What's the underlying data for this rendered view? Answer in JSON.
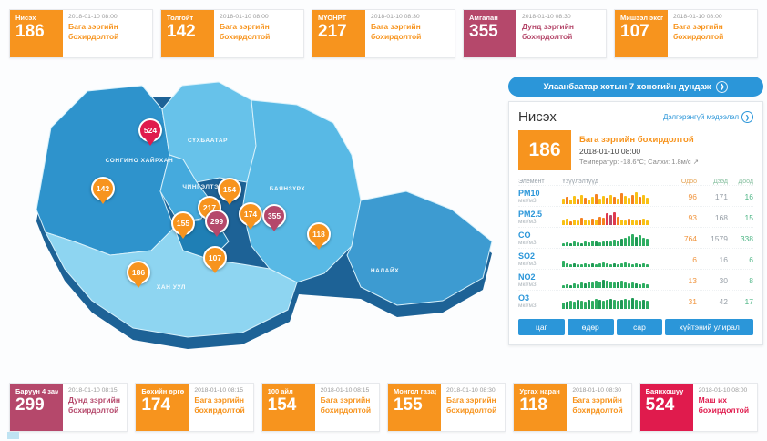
{
  "top_cards": [
    {
      "name": "Нисэх",
      "value": "186",
      "date": "2018-01-10 08:00",
      "status": "Бага зэргийн бохирдолтой"
    },
    {
      "name": "Толгойт",
      "value": "142",
      "date": "2018-01-10 08:00",
      "status": "Бага зэргийн бохирдолтой"
    },
    {
      "name": "МҮОНРТ",
      "value": "217",
      "date": "2018-01-10 08:30",
      "status": "Бага зэргийн бохирдолтой"
    },
    {
      "name": "Амгалан",
      "value": "355",
      "date": "2018-01-10 08:30",
      "status": "Дунд зэргийн бохирдолтой"
    },
    {
      "name": "Мишээл экспо",
      "value": "107",
      "date": "2018-01-10 08:00",
      "status": "Бага зэргийн бохирдолтой"
    }
  ],
  "bottom_cards": [
    {
      "name": "Баруун 4 зам",
      "value": "299",
      "date": "2018-01-10 08:15",
      "status": "Дунд зэргийн бохирдолтой"
    },
    {
      "name": "Бөхийн өргөө",
      "value": "174",
      "date": "2018-01-10 08:15",
      "status": "Бага зэргийн бохирдолтой"
    },
    {
      "name": "100 айл",
      "value": "154",
      "date": "2018-01-10 08:15",
      "status": "Бага зэргийн бохирдолтой"
    },
    {
      "name": "Монгол газар",
      "value": "155",
      "date": "2018-01-10 08:30",
      "status": "Бага зэргийн бохирдолтой"
    },
    {
      "name": "Ургах наран",
      "value": "118",
      "date": "2018-01-10 08:30",
      "status": "Бага зэргийн бохирдолтой"
    },
    {
      "name": "Баянхошуу",
      "value": "524",
      "date": "2018-01-10 08:00",
      "status": "Маш их бохирдолтой"
    }
  ],
  "map": {
    "districts": {
      "songino_khairkhan": "СОНГИНО ХАЙРХАН",
      "sukhbaatar": "СҮХБААТАР",
      "chingeltei": "ЧИНГЭЛТЭЙ",
      "bayanzurkh": "БАЯНЗҮРХ",
      "khan_uul": "ХАН УУЛ",
      "nalaikh": "НАЛАЙХ"
    },
    "markers": [
      {
        "value": "524",
        "level": "vhigh"
      },
      {
        "value": "142",
        "level": "low"
      },
      {
        "value": "154",
        "level": "low"
      },
      {
        "value": "217",
        "level": "low"
      },
      {
        "value": "299",
        "level": "mid"
      },
      {
        "value": "155",
        "level": "low"
      },
      {
        "value": "174",
        "level": "low"
      },
      {
        "value": "355",
        "level": "mid"
      },
      {
        "value": "118",
        "level": "low"
      },
      {
        "value": "107",
        "level": "low"
      },
      {
        "value": "186",
        "level": "low"
      }
    ]
  },
  "panel": {
    "header": "Улаанбаатар хотын 7 хоногийн дундаж",
    "station": "Нисэх",
    "details_link": "Дэлгэрэнгүй мэдээлэл",
    "value": "186",
    "status": "Бага зэргийн бохирдолтой",
    "date": "2018-01-10 08:00",
    "weather": "Температур: -18.6°C; Салхи: 1.8м/с ↗",
    "col_element": "Элемент",
    "col_indicators": "Үзүүлэлтүүд",
    "col_now": "Одоо",
    "col_max": "Дээд",
    "col_min": "Доод",
    "elements": [
      {
        "name": "PM10",
        "unit": "мкг/м3",
        "now": "96",
        "max": "171",
        "min": "16",
        "bars": [
          6,
          8,
          5,
          9,
          6,
          10,
          7,
          5,
          8,
          11,
          6,
          9,
          7,
          10,
          8,
          6,
          12,
          9,
          7,
          10,
          13,
          8,
          10,
          7
        ],
        "bar_colors": [
          "y",
          "o",
          "y",
          "y",
          "o",
          "y",
          "o",
          "y",
          "y",
          "o",
          "y",
          "y",
          "o",
          "y",
          "o",
          "y",
          "o",
          "y",
          "y",
          "o",
          "y",
          "o",
          "y",
          "y"
        ]
      },
      {
        "name": "PM2.5",
        "unit": "мкг/м3",
        "now": "93",
        "max": "168",
        "min": "15",
        "bars": [
          5,
          7,
          4,
          6,
          5,
          8,
          6,
          5,
          7,
          6,
          9,
          8,
          13,
          11,
          14,
          9,
          6,
          5,
          7,
          6,
          5,
          6,
          7,
          5
        ],
        "bar_colors": [
          "y",
          "y",
          "o",
          "y",
          "y",
          "o",
          "y",
          "y",
          "o",
          "y",
          "o",
          "o",
          "r",
          "m",
          "r",
          "o",
          "y",
          "y",
          "o",
          "y",
          "y",
          "o",
          "y",
          "y"
        ]
      },
      {
        "name": "CO",
        "unit": "мкг/м3",
        "now": "764",
        "max": "1579",
        "min": "338",
        "bars": [
          3,
          4,
          3,
          5,
          4,
          3,
          5,
          4,
          6,
          5,
          4,
          5,
          6,
          5,
          7,
          6,
          8,
          9,
          11,
          13,
          10,
          12,
          9,
          8
        ],
        "bar_colors": [
          "g",
          "g",
          "d",
          "g",
          "g",
          "d",
          "g",
          "g",
          "g",
          "d",
          "g",
          "g",
          "d",
          "g",
          "g",
          "g",
          "d",
          "g",
          "g",
          "g",
          "d",
          "g",
          "g",
          "g"
        ]
      },
      {
        "name": "SO2",
        "unit": "мкг/м3",
        "now": "6",
        "max": "16",
        "min": "6",
        "bars": [
          7,
          4,
          3,
          4,
          3,
          3,
          4,
          3,
          4,
          3,
          4,
          5,
          4,
          3,
          4,
          3,
          4,
          5,
          4,
          3,
          4,
          3,
          4,
          3
        ],
        "bar_colors": [
          "g",
          "g",
          "g",
          "d",
          "g",
          "g",
          "g",
          "g",
          "d",
          "g",
          "g",
          "g",
          "g",
          "g",
          "d",
          "g",
          "g",
          "g",
          "g",
          "g",
          "g",
          "d",
          "g",
          "g"
        ]
      },
      {
        "name": "NO2",
        "unit": "мкг/м3",
        "now": "13",
        "max": "30",
        "min": "8",
        "bars": [
          3,
          4,
          3,
          5,
          4,
          6,
          5,
          7,
          6,
          8,
          7,
          9,
          8,
          7,
          6,
          7,
          8,
          6,
          5,
          6,
          5,
          4,
          5,
          4
        ],
        "bar_colors": [
          "g",
          "g",
          "d",
          "g",
          "g",
          "g",
          "d",
          "g",
          "g",
          "g",
          "g",
          "d",
          "g",
          "g",
          "g",
          "d",
          "g",
          "g",
          "g",
          "g",
          "d",
          "g",
          "g",
          "g"
        ]
      },
      {
        "name": "O3",
        "unit": "мкг/м3",
        "now": "31",
        "max": "42",
        "min": "17",
        "bars": [
          7,
          8,
          9,
          8,
          10,
          9,
          8,
          10,
          9,
          11,
          10,
          9,
          10,
          11,
          10,
          9,
          10,
          11,
          10,
          12,
          10,
          9,
          10,
          9
        ],
        "bar_colors": [
          "g",
          "d",
          "g",
          "g",
          "d",
          "g",
          "g",
          "d",
          "g",
          "g",
          "d",
          "g",
          "g",
          "d",
          "g",
          "g",
          "d",
          "g",
          "g",
          "d",
          "g",
          "g",
          "d",
          "g"
        ]
      }
    ],
    "tabs": [
      "цаг",
      "өдөр",
      "сар",
      "хүйтэний улирал"
    ]
  },
  "icons": {
    "chevron": "❯"
  },
  "colors": {
    "level_low": "#f7941e",
    "level_mid": "#b5486b",
    "level_vhigh": "#e01b4d",
    "accent_blue": "#2b96d9",
    "now_value": "#f0953f",
    "max_value": "#98a0a8",
    "min_value": "#4eb585"
  },
  "palette": {
    "y": "#f9c116",
    "o": "#f58220",
    "r": "#e03a4e",
    "m": "#b5486b",
    "g": "#2fae62",
    "d": "#1f9a55"
  }
}
